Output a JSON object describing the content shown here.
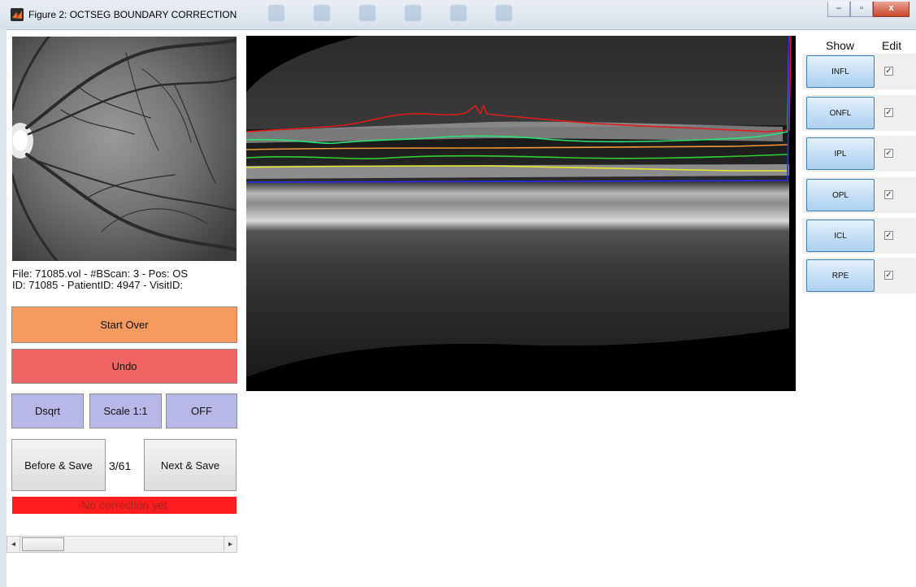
{
  "window": {
    "title": "Figure 2: OCTSEG BOUNDARY CORRECTION",
    "minimize_symbol": "–",
    "maximize_symbol": "▫",
    "close_symbol": "x"
  },
  "info": {
    "line1": "File: 71085.vol - #BScan: 3 - Pos: OS",
    "line2": "ID: 71085 - PatientID: 4947 - VisitID:"
  },
  "buttons": {
    "start_over": "Start Over",
    "undo": "Undo",
    "dsqrt": "Dsqrt",
    "scale": "Scale 1:1",
    "off": "OFF",
    "before_save": "Before & Save",
    "next_save": "Next & Save"
  },
  "navigation": {
    "page": "3/61"
  },
  "status": {
    "message": "No correction yet"
  },
  "scrollbar": {
    "left_arrow": "◂",
    "right_arrow": "▸"
  },
  "layer_panel": {
    "show_header": "Show",
    "edit_header": "Edit",
    "layers": [
      {
        "label": "INFL",
        "edit_checked": true,
        "check_symbol": "✓",
        "color": "#e11b1b"
      },
      {
        "label": "ONFL",
        "edit_checked": true,
        "check_symbol": "✓",
        "color": "#2ee07a"
      },
      {
        "label": "IPL",
        "edit_checked": true,
        "check_symbol": "✓",
        "color": "#f39a3a"
      },
      {
        "label": "OPL",
        "edit_checked": true,
        "check_symbol": "✓",
        "color": "#2fd12f"
      },
      {
        "label": "ICL",
        "edit_checked": true,
        "check_symbol": "✓",
        "color": "#e6e62a"
      },
      {
        "label": "RPE",
        "edit_checked": true,
        "check_symbol": "✓",
        "color": "#2a2aef"
      }
    ]
  },
  "colors": {
    "start_over_bg": "#f69a5f",
    "undo_bg": "#f06464",
    "tool_button_bg": "#b7b7e8",
    "status_bg": "#ff1e1e",
    "status_text": "#a52222",
    "layer_button_border": "#3c7fb1"
  },
  "icons": {
    "app": "matlab-icon",
    "minimize": "minimize-icon",
    "maximize": "maximize-icon",
    "close": "close-icon"
  }
}
